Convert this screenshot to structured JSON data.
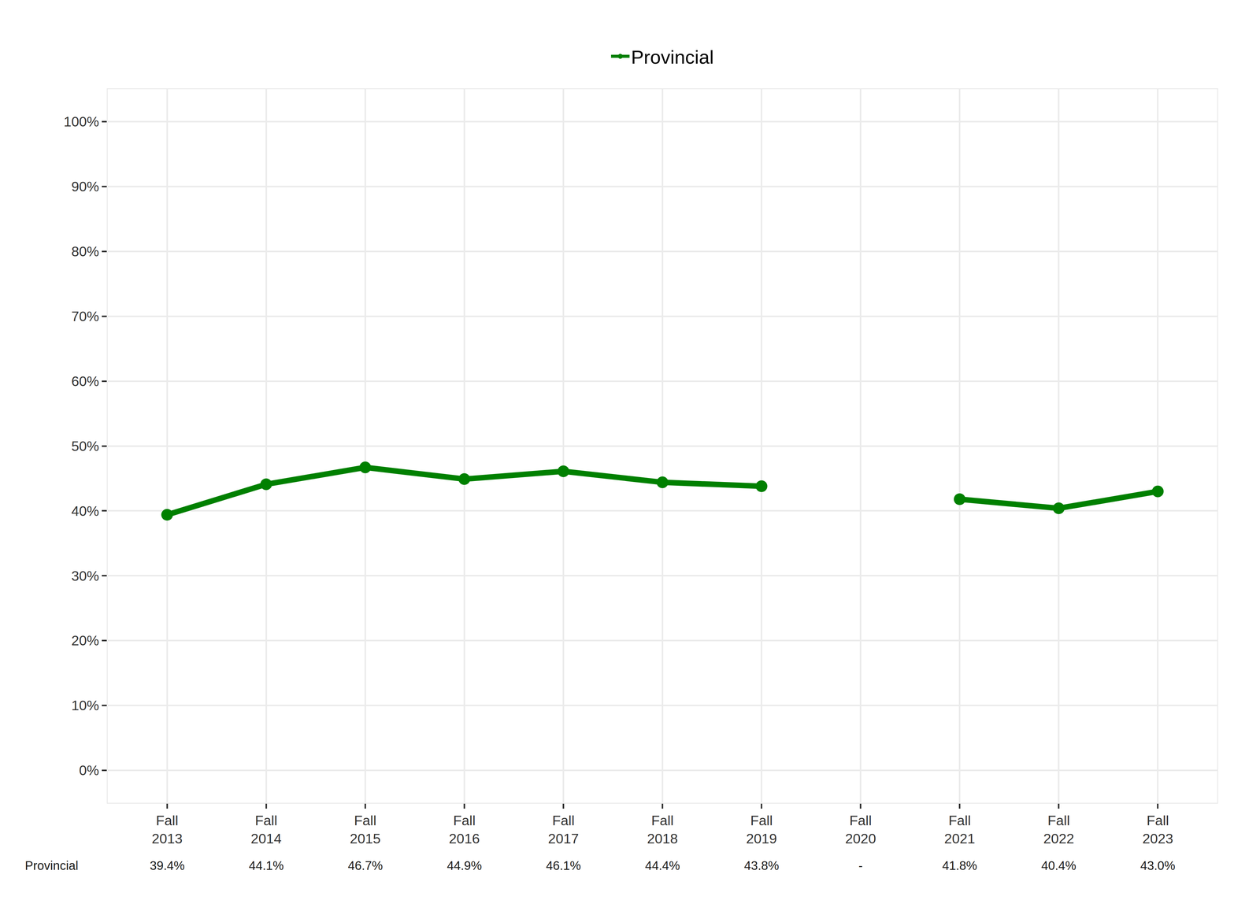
{
  "chart_data": {
    "type": "line",
    "categories": [
      "Fall 2013",
      "Fall 2014",
      "Fall 2015",
      "Fall 2016",
      "Fall 2017",
      "Fall 2018",
      "Fall 2019",
      "Fall 2020",
      "Fall 2021",
      "Fall 2022",
      "Fall 2023"
    ],
    "series": [
      {
        "name": "Provincial",
        "color": "#008000",
        "marker": "circle",
        "line_style": "solid",
        "values": [
          39.4,
          44.1,
          46.7,
          44.9,
          46.1,
          44.4,
          43.8,
          null,
          41.8,
          40.4,
          43.0
        ],
        "value_labels": [
          "39.4%",
          "44.1%",
          "46.7%",
          "44.9%",
          "46.1%",
          "44.4%",
          "43.8%",
          "-",
          "41.8%",
          "40.4%",
          "43.0%"
        ]
      }
    ],
    "ylim": [
      -5,
      105
    ],
    "yticks": [
      {
        "value": 0,
        "label": "0%"
      },
      {
        "value": 10,
        "label": "10%"
      },
      {
        "value": 20,
        "label": "20%"
      },
      {
        "value": 30,
        "label": "30%"
      },
      {
        "value": 40,
        "label": "40%"
      },
      {
        "value": 50,
        "label": "50%"
      },
      {
        "value": 60,
        "label": "60%"
      },
      {
        "value": 70,
        "label": "70%"
      },
      {
        "value": 80,
        "label": "80%"
      },
      {
        "value": 90,
        "label": "90%"
      },
      {
        "value": 100,
        "label": "100%"
      }
    ],
    "grid": true,
    "legend": "top"
  }
}
